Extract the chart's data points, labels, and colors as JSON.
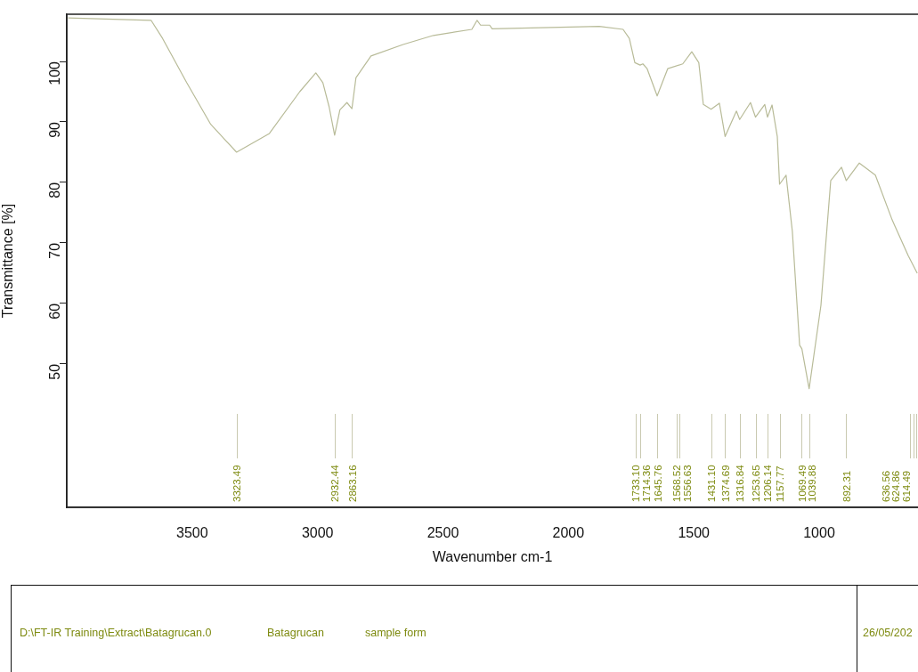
{
  "chart_data": {
    "type": "line",
    "xlabel": "Wavenumber cm-1",
    "ylabel": "Transmittance [%]",
    "xlim": [
      4000,
      606
    ],
    "ylim": [
      26.3,
      107.8
    ],
    "xticks": [
      3500,
      3000,
      2500,
      2000,
      1500,
      1000
    ],
    "yticks": [
      50,
      60,
      70,
      80,
      90,
      100
    ],
    "grid": false,
    "legend": false,
    "marker": "none",
    "line_style": "solid",
    "series": [
      {
        "color": "#b8bb98",
        "x": [
          3995,
          3664,
          3618,
          3522,
          3426,
          3323,
          3192,
          3071,
          3007,
          2979,
          2954,
          2932,
          2911,
          2883,
          2863,
          2847,
          2787,
          2659,
          2538,
          2385,
          2364,
          2350,
          2314,
          2304,
          1877,
          1782,
          1757,
          1735,
          1714,
          1703,
          1686,
          1646,
          1604,
          1544,
          1508,
          1480,
          1462,
          1431,
          1398,
          1375,
          1330,
          1317,
          1274,
          1254,
          1217,
          1206,
          1188,
          1167,
          1158,
          1132,
          1107,
          1078,
          1069,
          1040,
          993,
          954,
          911,
          892,
          840,
          776,
          709,
          645,
          609
        ],
        "values": [
          107.2,
          106.8,
          103.8,
          96.5,
          89.6,
          85.0,
          88.1,
          95.0,
          98.1,
          96.5,
          92.5,
          87.8,
          92.0,
          93.2,
          92.2,
          97.3,
          100.9,
          102.8,
          104.3,
          105.3,
          106.8,
          106.0,
          106.0,
          105.4,
          105.8,
          105.3,
          103.8,
          99.8,
          99.4,
          99.6,
          98.8,
          94.3,
          98.8,
          99.6,
          101.6,
          99.8,
          92.9,
          92.1,
          93.1,
          87.6,
          91.8,
          90.4,
          93.2,
          90.8,
          92.9,
          90.8,
          92.8,
          87.6,
          79.7,
          81.2,
          71.9,
          53.1,
          52.5,
          45.9,
          59.7,
          80.3,
          82.5,
          80.3,
          83.2,
          81.2,
          73.8,
          67.9,
          65.0
        ]
      }
    ],
    "ref_lines": [
      {
        "axis": "x",
        "value": 3323.49,
        "label": "3323.49",
        "color": "#c9c9b0"
      },
      {
        "axis": "x",
        "value": 2932.44,
        "label": "2932.44",
        "color": "#c9c9b0"
      },
      {
        "axis": "x",
        "value": 2863.16,
        "label": "2863.16",
        "color": "#c9c9b0"
      },
      {
        "axis": "x",
        "value": 1733.1,
        "label": "1733.10",
        "color": "#c9c9b0"
      },
      {
        "axis": "x",
        "value": 1714.36,
        "label": "1714.36",
        "color": "#c9c9b0"
      },
      {
        "axis": "x",
        "value": 1645.76,
        "label": "1645.76",
        "color": "#c9c9b0"
      },
      {
        "axis": "x",
        "value": 1568.52,
        "label": "1568.52",
        "color": "#c9c9b0"
      },
      {
        "axis": "x",
        "value": 1556.63,
        "label": "1556.63",
        "color": "#c9c9b0"
      },
      {
        "axis": "x",
        "value": 1431.1,
        "label": "1431.10",
        "color": "#c9c9b0"
      },
      {
        "axis": "x",
        "value": 1374.69,
        "label": "1374.69",
        "color": "#c9c9b0"
      },
      {
        "axis": "x",
        "value": 1316.84,
        "label": "1316.84",
        "color": "#c9c9b0"
      },
      {
        "axis": "x",
        "value": 1253.65,
        "label": "1253.65",
        "color": "#c9c9b0"
      },
      {
        "axis": "x",
        "value": 1206.14,
        "label": "1206.14",
        "color": "#c9c9b0"
      },
      {
        "axis": "x",
        "value": 1157.77,
        "label": "1157.77",
        "color": "#c9c9b0"
      },
      {
        "axis": "x",
        "value": 1069.49,
        "label": "1069.49",
        "color": "#c9c9b0"
      },
      {
        "axis": "x",
        "value": 1039.88,
        "label": "1039.88",
        "color": "#c9c9b0"
      },
      {
        "axis": "x",
        "value": 892.31,
        "label": "892.31",
        "color": "#c9c9b0"
      },
      {
        "axis": "x",
        "value": 636.56,
        "label": "636.56",
        "color": "#c9c9b0"
      },
      {
        "axis": "x",
        "value": 624.86,
        "label": "624.86",
        "color": "#c9c9b0"
      },
      {
        "axis": "x",
        "value": 614.49,
        "label": "614.49",
        "color": "#c9c9b0"
      }
    ],
    "annotations": [
      "D:\\FT-IR Training\\Extract\\Batagrucan.0",
      "Batagrucan",
      "sample form",
      "26/05/202"
    ]
  }
}
